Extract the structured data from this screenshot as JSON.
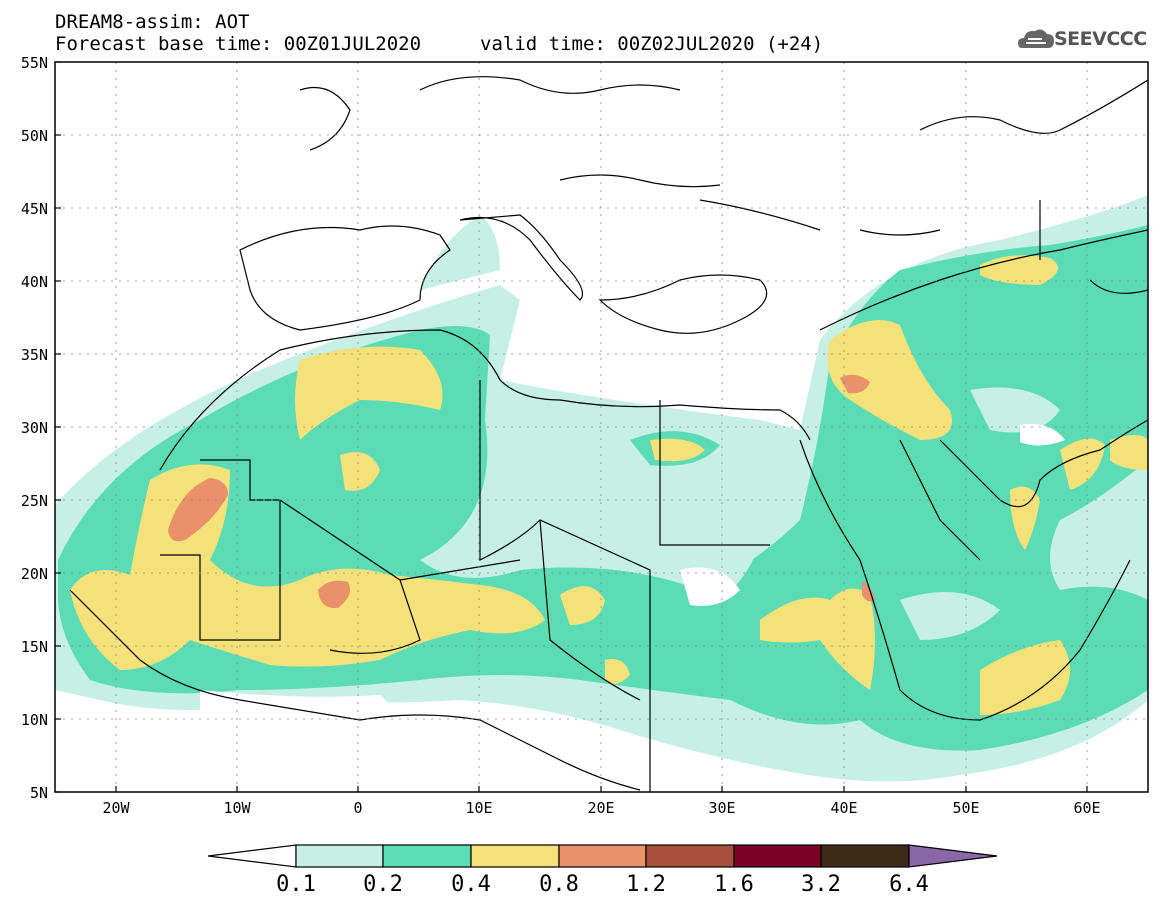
{
  "header": {
    "title": "DREAM8-assim: AOT",
    "base_time": "Forecast base time: 00Z01JUL2020",
    "valid_time": "valid time: 00Z02JUL2020 (+24)"
  },
  "logo": {
    "text": "SEEVCCC"
  },
  "axes": {
    "lat_labels": [
      "55N",
      "50N",
      "45N",
      "40N",
      "35N",
      "30N",
      "25N",
      "20N",
      "15N",
      "10N",
      "5N"
    ],
    "lon_labels": [
      "20W",
      "10W",
      "0",
      "10E",
      "20E",
      "30E",
      "40E",
      "50E",
      "60E"
    ]
  },
  "colorbar": {
    "labels": [
      "0.1",
      "0.2",
      "0.4",
      "0.8",
      "1.2",
      "1.6",
      "3.2",
      "6.4"
    ],
    "colors": [
      "#ffffff",
      "#c6efe6",
      "#5cdcb4",
      "#f5e17a",
      "#e8916a",
      "#a8503c",
      "#7a0028",
      "#3f2a18",
      "#8a68a8"
    ]
  }
}
